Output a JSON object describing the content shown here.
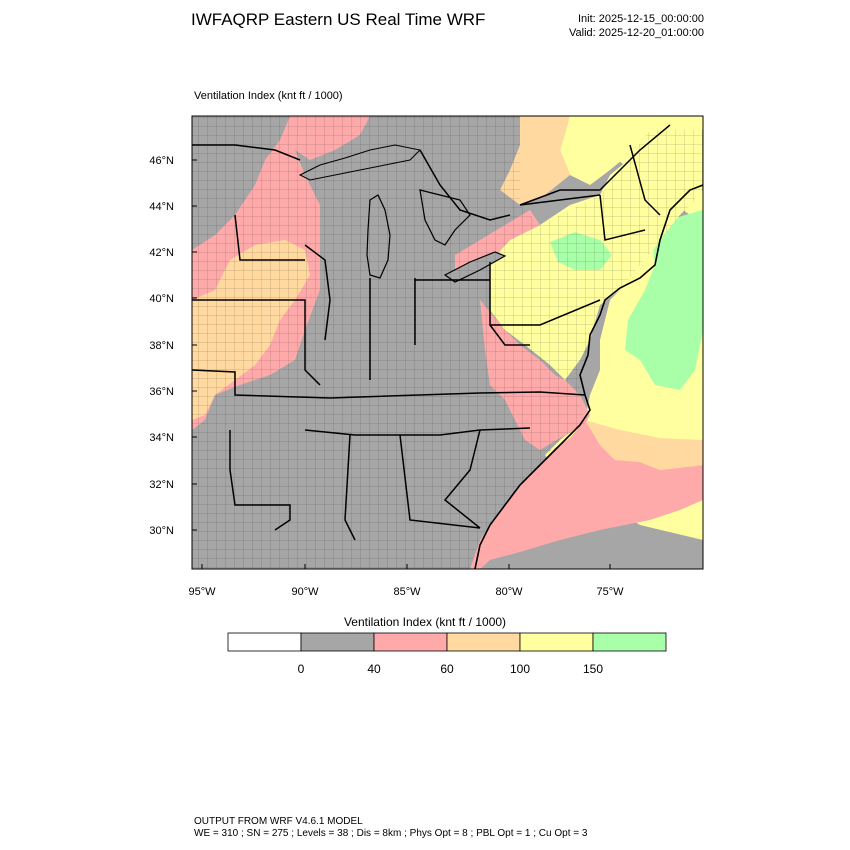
{
  "header": {
    "title": "IWFAQRP Eastern US Real Time WRF",
    "init": "Init: 2025-12-15_00:00:00",
    "valid": "Valid: 2025-12-20_01:00:00"
  },
  "field": {
    "label": "Ventilation Index   (knt ft / 1000)"
  },
  "axes": {
    "lat_labels": [
      "46°N",
      "44°N",
      "42°N",
      "40°N",
      "38°N",
      "36°N",
      "34°N",
      "32°N",
      "30°N"
    ],
    "lon_labels": [
      "95°W",
      "90°W",
      "85°W",
      "80°W",
      "75°W"
    ]
  },
  "colors": {
    "lt0": "#ffffff",
    "c0_40": "#a6a6a6",
    "c40_60": "#ffaaaa",
    "c60_100": "#ffd9a0",
    "c100_150": "#ffffa0",
    "c150p": "#a8ffa8"
  },
  "legend": {
    "title": "Ventilation Index  (knt ft / 1000)",
    "bins": [
      "lt0",
      "c0_40",
      "c40_60",
      "c60_100",
      "c100_150",
      "c150p"
    ],
    "labels": [
      "0",
      "40",
      "60",
      "100",
      "150"
    ]
  },
  "footer": {
    "line1": "OUTPUT FROM WRF V4.6.1 MODEL",
    "line2": "WE = 310 ; SN = 275 ; Levels = 38 ; Dis = 8km ; Phys Opt = 8 ; PBL Opt = 1 ; Cu Opt = 3"
  }
}
